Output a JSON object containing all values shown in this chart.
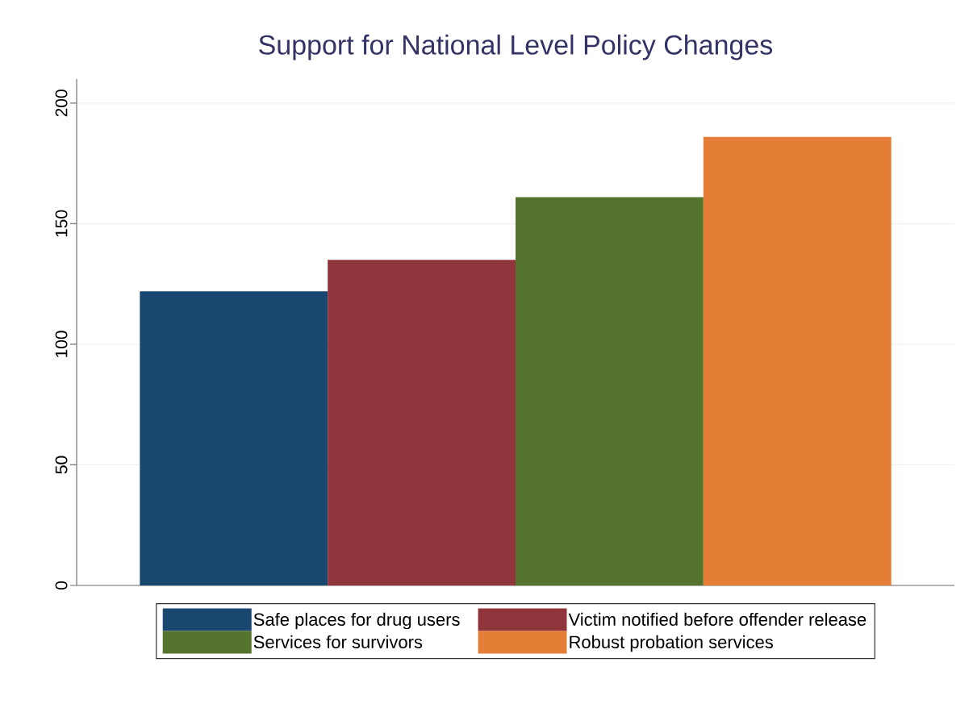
{
  "chart_data": {
    "type": "bar",
    "title": "Support for National Level Policy Changes",
    "categories": [
      null
    ],
    "series": [
      {
        "name": "Safe places for drug users",
        "color": "#1a476f",
        "values": [
          122
        ]
      },
      {
        "name": "Victim notified before offender release",
        "color": "#90353b",
        "values": [
          135
        ]
      },
      {
        "name": "Services for survivors",
        "color": "#55752f",
        "values": [
          161
        ]
      },
      {
        "name": "Robust probation services",
        "color": "#e47e36",
        "values": [
          186
        ]
      }
    ],
    "ylim": [
      0,
      210
    ],
    "yticks": [
      0,
      50,
      100,
      150,
      200
    ],
    "grid": "y",
    "legend": "bottom"
  }
}
